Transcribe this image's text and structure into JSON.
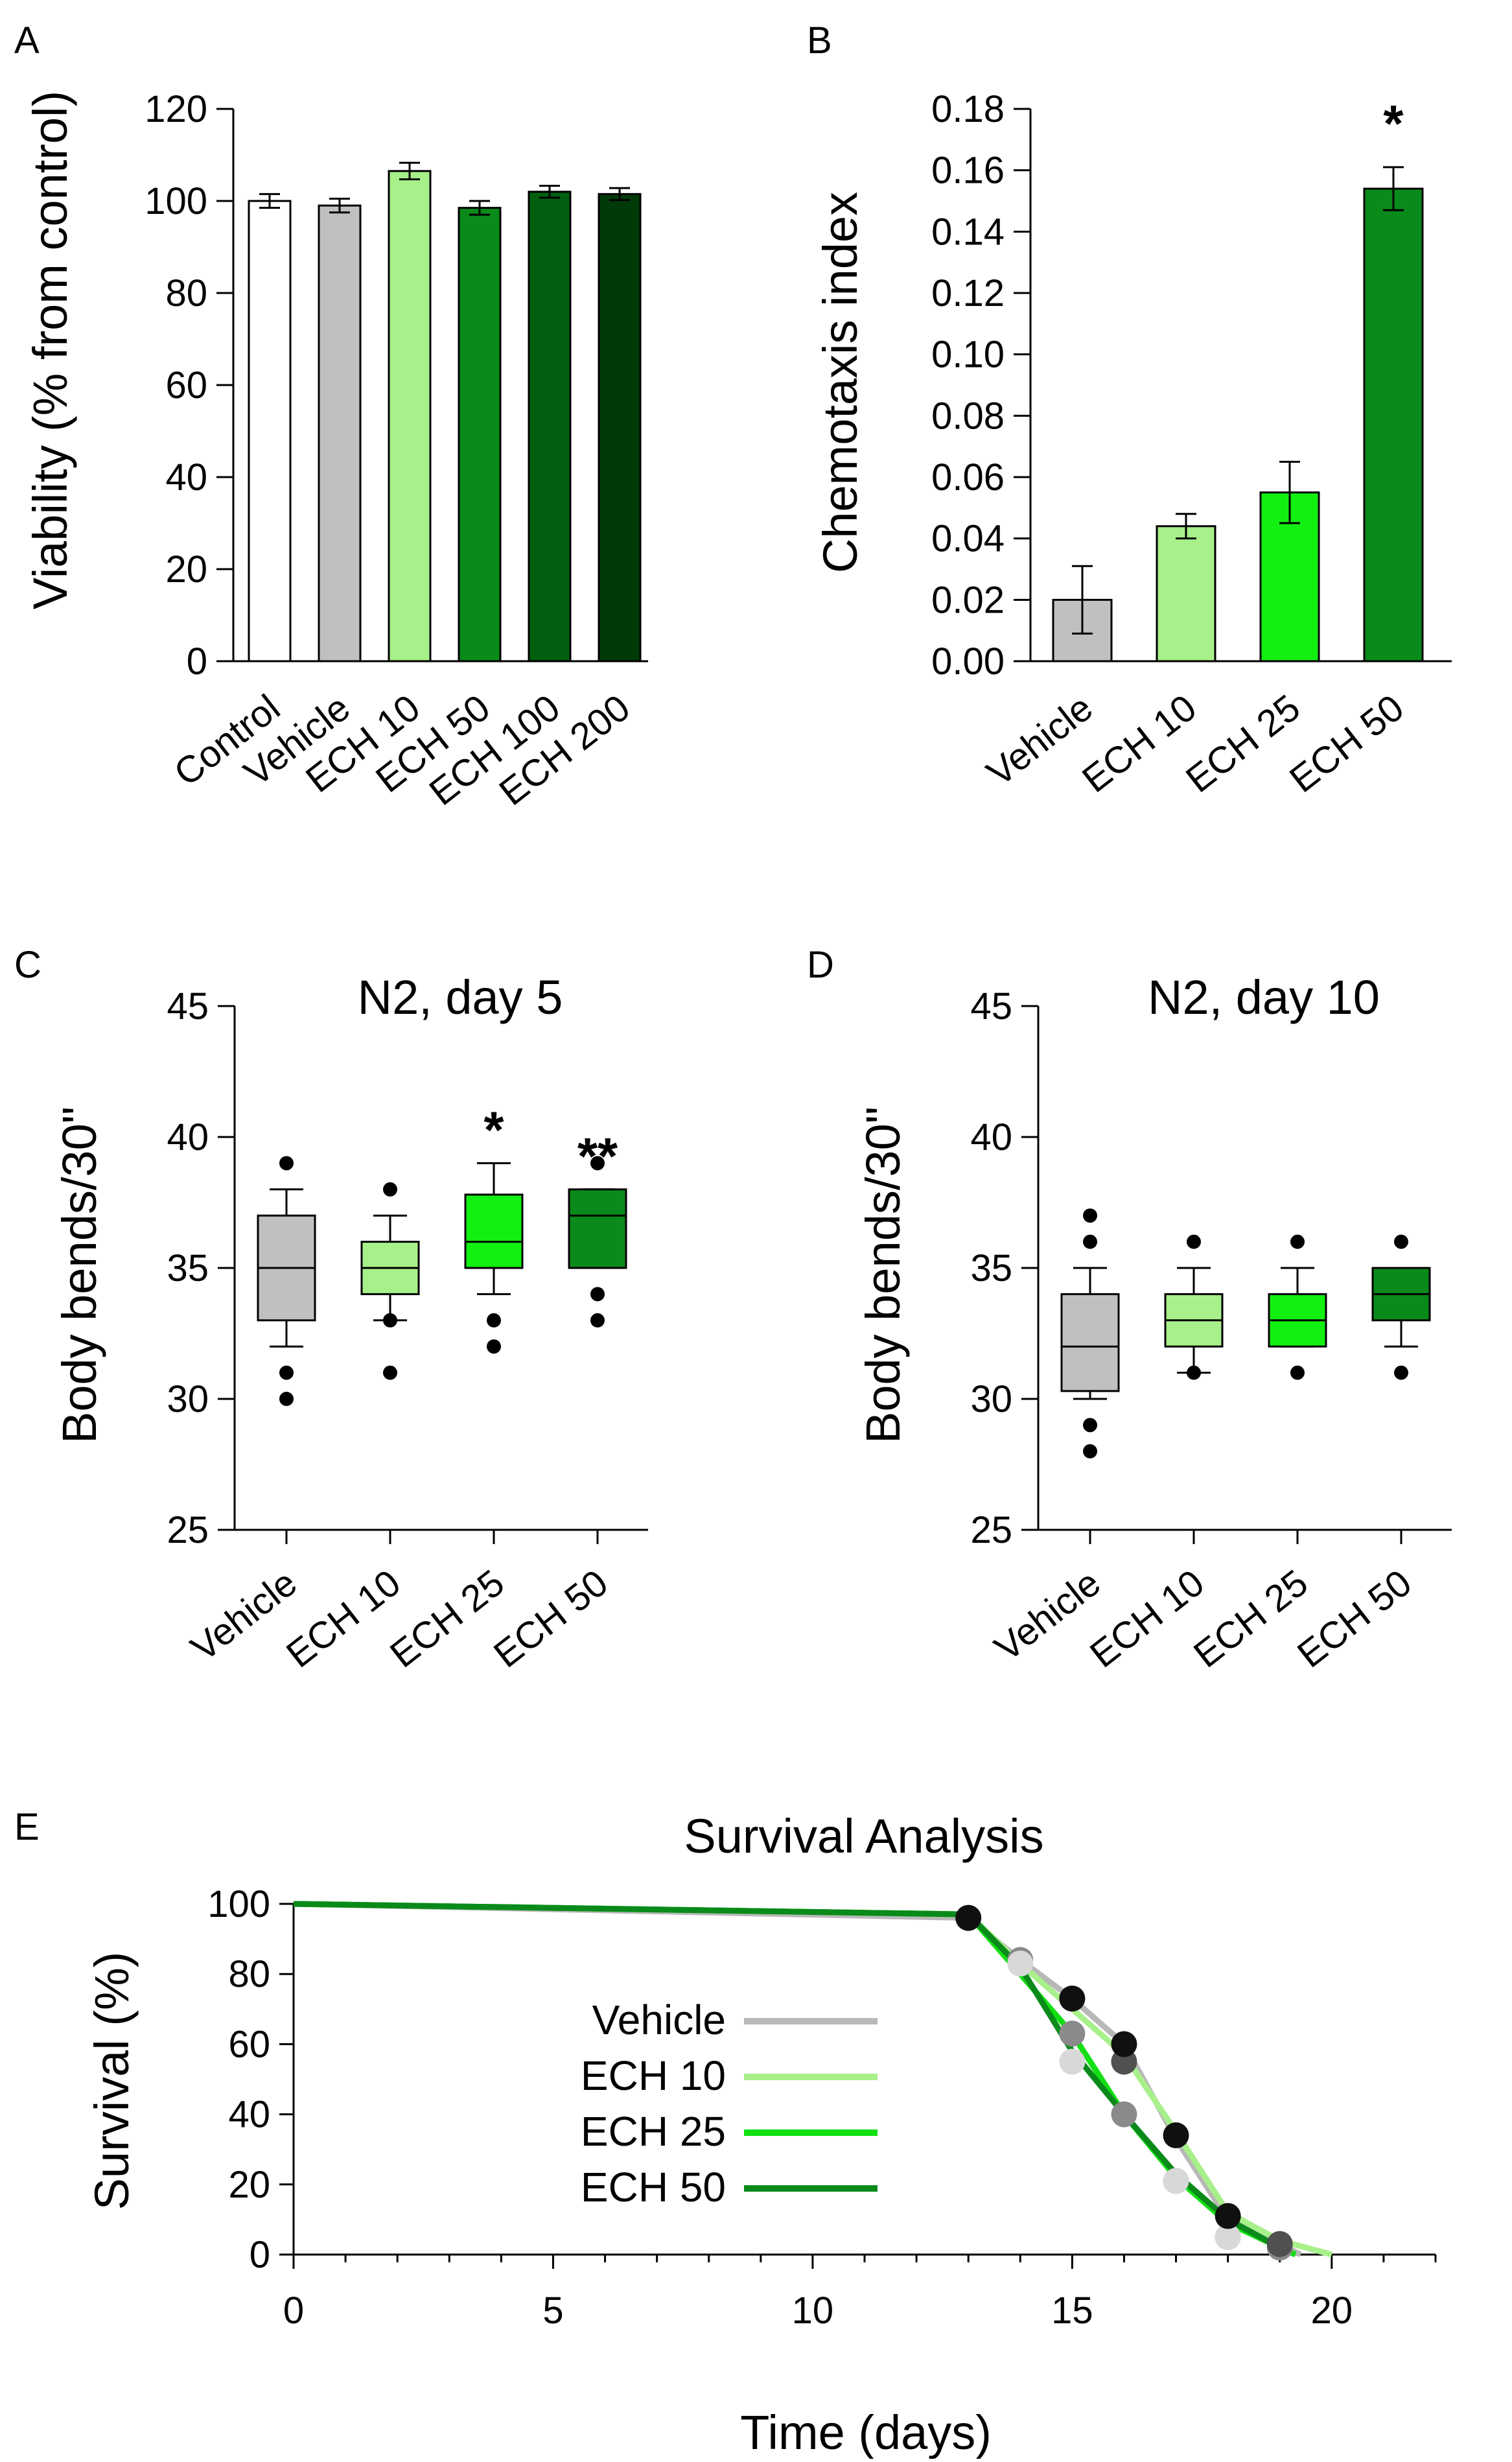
{
  "chart_data": [
    {
      "panel": "A",
      "type": "bar",
      "title": "",
      "ylabel": "Viability (% from control)",
      "xlabel": "",
      "ylim": [
        0,
        120
      ],
      "yticks": [
        "0",
        "20",
        "40",
        "60",
        "80",
        "100",
        "120"
      ],
      "categories": [
        "Control",
        "Vehicle",
        "ECH 10",
        "ECH 50",
        "ECH 100",
        "ECH 200"
      ],
      "values": [
        100,
        99,
        106.5,
        98.5,
        102,
        101.5
      ],
      "errors": [
        1.5,
        1.5,
        1.8,
        1.5,
        1.3,
        1.3
      ],
      "colors": [
        "#ffffff",
        "#c0c0c0",
        "#a8f08a",
        "#0a8a1a",
        "#006010",
        "#003a08"
      ],
      "annotations": [
        "",
        "",
        "",
        "",
        "",
        ""
      ]
    },
    {
      "panel": "B",
      "type": "bar",
      "title": "",
      "ylabel": "Chemotaxis index",
      "xlabel": "",
      "ylim": [
        0,
        0.18
      ],
      "yticks": [
        "0.00",
        "0.02",
        "0.04",
        "0.06",
        "0.08",
        "0.10",
        "0.12",
        "0.14",
        "0.16",
        "0.18"
      ],
      "categories": [
        "Vehicle",
        "ECH 10",
        "ECH 25",
        "ECH 50"
      ],
      "values": [
        0.02,
        0.044,
        0.055,
        0.154
      ],
      "errors": [
        0.011,
        0.004,
        0.01,
        0.007
      ],
      "colors": [
        "#c0c0c0",
        "#a8f08a",
        "#12f012",
        "#0a8a1a"
      ],
      "annotations": [
        "",
        "",
        "",
        "*"
      ]
    },
    {
      "panel": "C",
      "type": "box",
      "title": "N2, day 5",
      "ylabel": "Body bends/30\"",
      "xlabel": "",
      "ylim": [
        25,
        45
      ],
      "yticks": [
        "25",
        "30",
        "35",
        "40",
        "45"
      ],
      "categories": [
        "Vehicle",
        "ECH 10",
        "ECH 25",
        "ECH 50"
      ],
      "boxes": [
        {
          "whisker_low": 32,
          "q1": 33,
          "median": 35,
          "q3": 37,
          "whisker_high": 38,
          "outliers": [
            39,
            31,
            30
          ]
        },
        {
          "whisker_low": 33,
          "q1": 34,
          "median": 35,
          "q3": 36,
          "whisker_high": 37,
          "outliers": [
            38,
            33,
            31
          ]
        },
        {
          "whisker_low": 34,
          "q1": 35,
          "median": 36,
          "q3": 37.8,
          "whisker_high": 39,
          "outliers": [
            33,
            32
          ]
        },
        {
          "whisker_low": 35,
          "q1": 35,
          "median": 37,
          "q3": 38,
          "whisker_high": 38,
          "outliers": [
            39,
            34,
            33
          ]
        }
      ],
      "colors": [
        "#c0c0c0",
        "#a8f08a",
        "#12f012",
        "#0a8a1a"
      ],
      "annotations": [
        "",
        "",
        "*",
        "**"
      ]
    },
    {
      "panel": "D",
      "type": "box",
      "title": "N2, day 10",
      "ylabel": "Body bends/30\"",
      "xlabel": "",
      "ylim": [
        25,
        45
      ],
      "yticks": [
        "25",
        "30",
        "35",
        "40",
        "45"
      ],
      "categories": [
        "Vehicle",
        "ECH 10",
        "ECH 25",
        "ECH 50"
      ],
      "boxes": [
        {
          "whisker_low": 30,
          "q1": 30.3,
          "median": 32,
          "q3": 34,
          "whisker_high": 35,
          "outliers": [
            37,
            36,
            29,
            28
          ]
        },
        {
          "whisker_low": 31,
          "q1": 32,
          "median": 33,
          "q3": 34,
          "whisker_high": 35,
          "outliers": [
            36,
            31
          ]
        },
        {
          "whisker_low": 32,
          "q1": 32,
          "median": 33,
          "q3": 34,
          "whisker_high": 35,
          "outliers": [
            36,
            31
          ]
        },
        {
          "whisker_low": 32,
          "q1": 33,
          "median": 34,
          "q3": 35,
          "whisker_high": 35,
          "outliers": [
            36,
            31
          ]
        }
      ],
      "colors": [
        "#c0c0c0",
        "#a8f08a",
        "#12f012",
        "#0a8a1a"
      ],
      "annotations": [
        "",
        "",
        "",
        ""
      ]
    },
    {
      "panel": "E",
      "type": "line",
      "title": "Survival Analysis",
      "xlabel": "Time (days)",
      "ylabel": "Survival (%)",
      "xlim": [
        0,
        22
      ],
      "ylim": [
        0,
        100
      ],
      "xticks": [
        "0",
        "5",
        "10",
        "15",
        "20"
      ],
      "yticks": [
        "0",
        "20",
        "40",
        "60",
        "80",
        "100"
      ],
      "legend_position": "center-left",
      "series": [
        {
          "name": "Vehicle",
          "color": "#b8b8b8",
          "marker_color": "#8a8a8a",
          "line": [
            [
              0,
              100
            ],
            [
              13,
              96
            ],
            [
              14,
              84
            ],
            [
              15,
              73
            ],
            [
              16,
              60
            ],
            [
              17,
              33
            ],
            [
              18,
              10
            ],
            [
              19,
              3
            ],
            [
              19.4,
              0
            ]
          ],
          "markers": [
            [
              13,
              96
            ],
            [
              14,
              84
            ],
            [
              15,
              63
            ],
            [
              16,
              40
            ],
            [
              17,
              21
            ],
            [
              18,
              5
            ],
            [
              19,
              2
            ]
          ]
        },
        {
          "name": "ECH 10",
          "color": "#a8f08a",
          "marker_color": "#d8d8d8",
          "line": [
            [
              0,
              100
            ],
            [
              13,
              97
            ],
            [
              14,
              83
            ],
            [
              15,
              70
            ],
            [
              16,
              57
            ],
            [
              17,
              35
            ],
            [
              18,
              12
            ],
            [
              19,
              4
            ],
            [
              20,
              0
            ]
          ],
          "markers": [
            [
              14,
              83
            ],
            [
              15,
              55
            ],
            [
              17,
              21
            ],
            [
              18,
              5
            ]
          ]
        },
        {
          "name": "ECH 25",
          "color": "#12e012",
          "marker_color": "#505050",
          "line": [
            [
              0,
              100
            ],
            [
              13,
              97
            ],
            [
              14,
              80
            ],
            [
              15,
              63
            ],
            [
              16,
              40
            ],
            [
              17,
              22
            ],
            [
              18,
              9
            ],
            [
              19,
              2
            ],
            [
              19.3,
              0
            ]
          ],
          "markers": [
            [
              15,
              73
            ],
            [
              16,
              55
            ],
            [
              19,
              3
            ]
          ]
        },
        {
          "name": "ECH 50",
          "color": "#0a8a1a",
          "marker_color": "#101010",
          "line": [
            [
              0,
              100
            ],
            [
              13,
              97
            ],
            [
              14,
              82
            ],
            [
              15,
              58
            ],
            [
              16,
              40
            ],
            [
              17,
              23
            ],
            [
              18,
              10
            ],
            [
              19,
              2
            ],
            [
              19.2,
              0
            ]
          ],
          "markers": [
            [
              13,
              96
            ],
            [
              15,
              73
            ],
            [
              16,
              60
            ],
            [
              17,
              34
            ],
            [
              18,
              11
            ]
          ]
        }
      ]
    }
  ]
}
